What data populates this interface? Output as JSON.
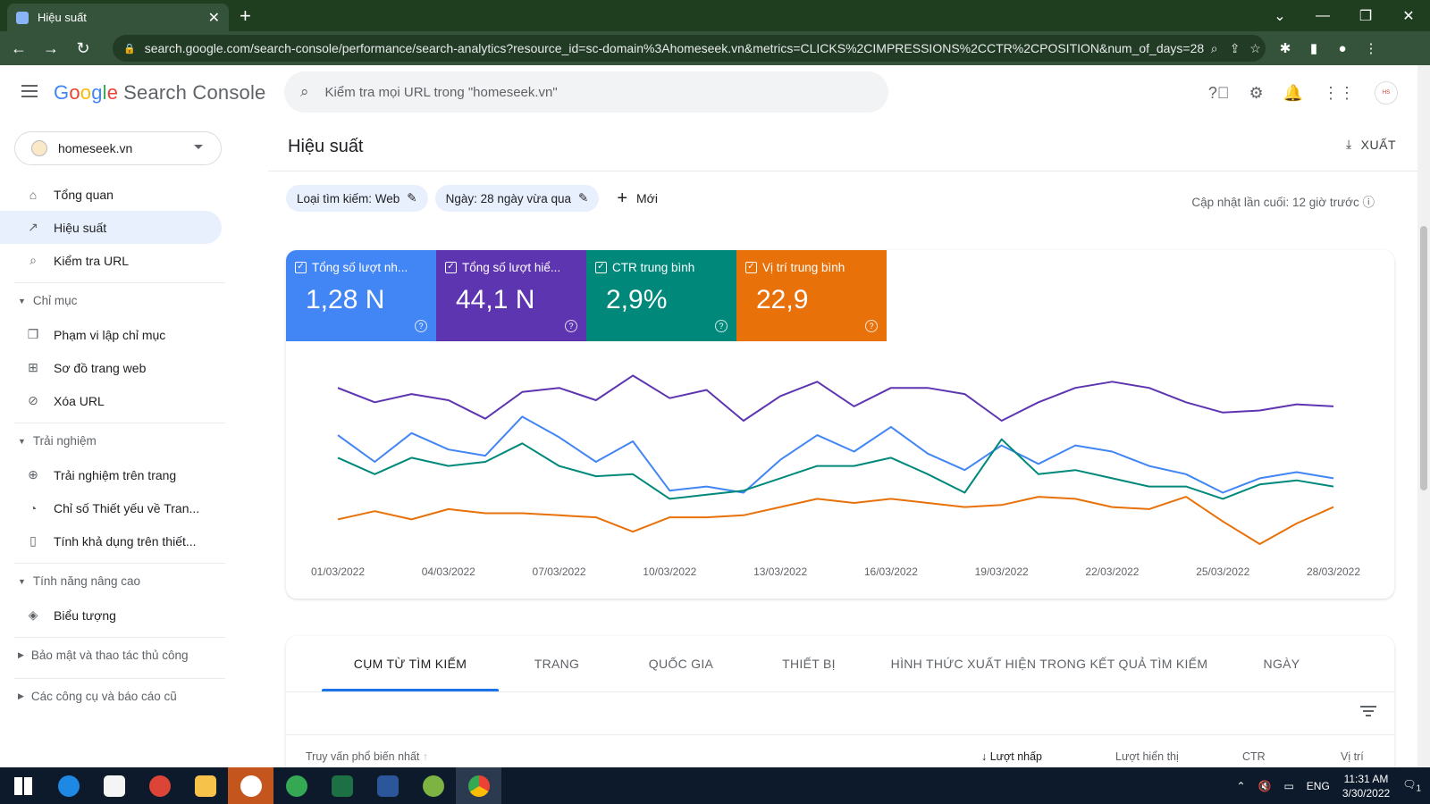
{
  "browser": {
    "tab_title": "Hiệu suất",
    "url": "search.google.com/search-console/performance/search-analytics?resource_id=sc-domain%3Ahomeseek.vn&metrics=CLICKS%2CIMPRESSIONS%2CCTR%2CPOSITION&num_of_days=28"
  },
  "header": {
    "logo_google": [
      "G",
      "o",
      "o",
      "g",
      "l",
      "e"
    ],
    "logo_product": "Search Console",
    "search_placeholder": "Kiểm tra mọi URL trong \"homeseek.vn\""
  },
  "sidebar": {
    "property": "homeseek.vn",
    "items": [
      {
        "label": "Tổng quan",
        "icon": "home-icon"
      },
      {
        "label": "Hiệu suất",
        "icon": "trending-up-icon"
      },
      {
        "label": "Kiểm tra URL",
        "icon": "search-icon"
      }
    ],
    "sections": [
      {
        "title": "Chỉ mục",
        "items": [
          {
            "label": "Phạm vi lập chỉ mục"
          },
          {
            "label": "Sơ đồ trang web"
          },
          {
            "label": "Xóa URL"
          }
        ]
      },
      {
        "title": "Trải nghiệm",
        "items": [
          {
            "label": "Trải nghiệm trên trang"
          },
          {
            "label": "Chỉ số Thiết yếu về Tran..."
          },
          {
            "label": "Tính khả dụng trên thiết..."
          }
        ]
      },
      {
        "title": "Tính năng nâng cao",
        "items": [
          {
            "label": "Biểu tượng"
          }
        ]
      },
      {
        "title": "Bảo mật và thao tác thủ công",
        "items": []
      },
      {
        "title": "Các công cụ và báo cáo cũ",
        "items": []
      }
    ]
  },
  "main": {
    "title": "Hiệu suất",
    "export_label": "XUẤT",
    "chips": [
      "Loại tìm kiếm: Web",
      "Ngày: 28 ngày vừa qua"
    ],
    "new_label": "Mới",
    "updated": "Cập nhật lần cuối: 12 giờ trước"
  },
  "metrics": [
    {
      "label": "Tổng số lượt nh...",
      "value": "1,28 N",
      "color": "#4285f4"
    },
    {
      "label": "Tổng số lượt hiể...",
      "value": "44,1 N",
      "color": "#5e35b1"
    },
    {
      "label": "CTR trung bình",
      "value": "2,9%",
      "color": "#00897b"
    },
    {
      "label": "Vị trí trung bình",
      "value": "22,9",
      "color": "#e8710a"
    }
  ],
  "chart_data": {
    "type": "line",
    "x": [
      "01/03/2022",
      "02/03/2022",
      "03/03/2022",
      "04/03/2022",
      "05/03/2022",
      "06/03/2022",
      "07/03/2022",
      "08/03/2022",
      "09/03/2022",
      "10/03/2022",
      "11/03/2022",
      "12/03/2022",
      "13/03/2022",
      "14/03/2022",
      "15/03/2022",
      "16/03/2022",
      "17/03/2022",
      "18/03/2022",
      "19/03/2022",
      "20/03/2022",
      "21/03/2022",
      "22/03/2022",
      "23/03/2022",
      "24/03/2022",
      "25/03/2022",
      "26/03/2022",
      "27/03/2022",
      "28/03/2022"
    ],
    "tick_labels": [
      "01/03/2022",
      "04/03/2022",
      "07/03/2022",
      "10/03/2022",
      "13/03/2022",
      "16/03/2022",
      "19/03/2022",
      "22/03/2022",
      "25/03/2022",
      "28/03/2022"
    ],
    "series": [
      {
        "color": "#5e35b1",
        "values": [
          0.86,
          0.79,
          0.83,
          0.8,
          0.71,
          0.84,
          0.86,
          0.8,
          0.92,
          0.81,
          0.85,
          0.7,
          0.82,
          0.89,
          0.77,
          0.86,
          0.86,
          0.83,
          0.7,
          0.79,
          0.86,
          0.89,
          0.86,
          0.79,
          0.74,
          0.75,
          0.78,
          0.77
        ]
      },
      {
        "color": "#4285f4",
        "values": [
          0.63,
          0.5,
          0.64,
          0.56,
          0.53,
          0.72,
          0.62,
          0.5,
          0.6,
          0.36,
          0.38,
          0.35,
          0.51,
          0.63,
          0.55,
          0.67,
          0.54,
          0.46,
          0.58,
          0.49,
          0.58,
          0.55,
          0.48,
          0.44,
          0.35,
          0.42,
          0.45,
          0.42
        ]
      },
      {
        "color": "#00897b",
        "values": [
          0.52,
          0.44,
          0.52,
          0.48,
          0.5,
          0.59,
          0.48,
          0.43,
          0.44,
          0.32,
          0.34,
          0.36,
          0.42,
          0.48,
          0.48,
          0.52,
          0.44,
          0.35,
          0.61,
          0.44,
          0.46,
          0.42,
          0.38,
          0.38,
          0.32,
          0.39,
          0.41,
          0.38
        ]
      },
      {
        "color": "#e8710a",
        "values": [
          0.22,
          0.26,
          0.22,
          0.27,
          0.25,
          0.25,
          0.24,
          0.23,
          0.16,
          0.23,
          0.23,
          0.24,
          0.28,
          0.32,
          0.3,
          0.32,
          0.3,
          0.28,
          0.29,
          0.33,
          0.32,
          0.28,
          0.27,
          0.33,
          0.21,
          0.1,
          0.2,
          0.28
        ]
      }
    ]
  },
  "table": {
    "tabs": [
      "CỤM TỪ TÌM KIẾM",
      "TRANG",
      "QUỐC GIA",
      "THIẾT BỊ",
      "HÌNH THỨC XUẤT HIỆN TRONG KẾT QUẢ TÌM KIẾM",
      "NGÀY"
    ],
    "columns": {
      "query": "Truy vấn phổ biến nhất",
      "clicks": "Lượt nhấp",
      "impressions": "Lượt hiển thị",
      "ctr": "CTR",
      "position": "Vị trí"
    }
  },
  "taskbar": {
    "lang": "ENG",
    "time": "11:31 AM",
    "date": "3/30/2022",
    "notif_count": "1"
  }
}
